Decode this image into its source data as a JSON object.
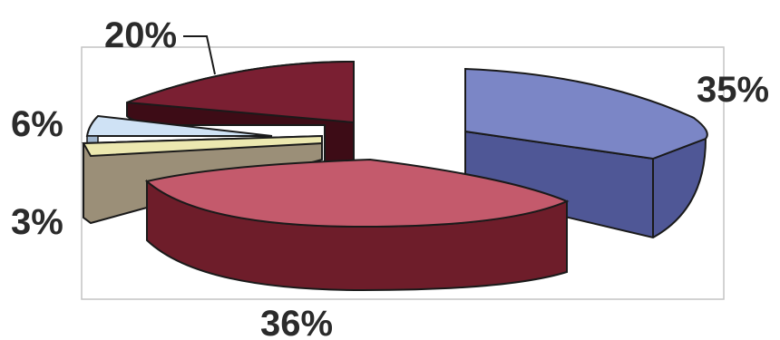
{
  "chart_data": {
    "type": "pie",
    "title": "",
    "three_d": true,
    "exploded": true,
    "slices": [
      {
        "label": "35%",
        "value": 35,
        "top_color": "#7b86c6",
        "side_color": "#4f5796"
      },
      {
        "label": "36%",
        "value": 36,
        "top_color": "#c45a6c",
        "side_color": "#6e1d2a"
      },
      {
        "label": "3%",
        "value": 3,
        "top_color": "#ece8b0",
        "side_color": "#9b8f78"
      },
      {
        "label": "6%",
        "value": 6,
        "top_color": "#cfe2f5",
        "side_color": "#9db3cc"
      },
      {
        "label": "20%",
        "value": 20,
        "top_color": "#7a1f32",
        "side_color": "#3d0c16"
      }
    ],
    "grid": false,
    "legend": "none"
  }
}
